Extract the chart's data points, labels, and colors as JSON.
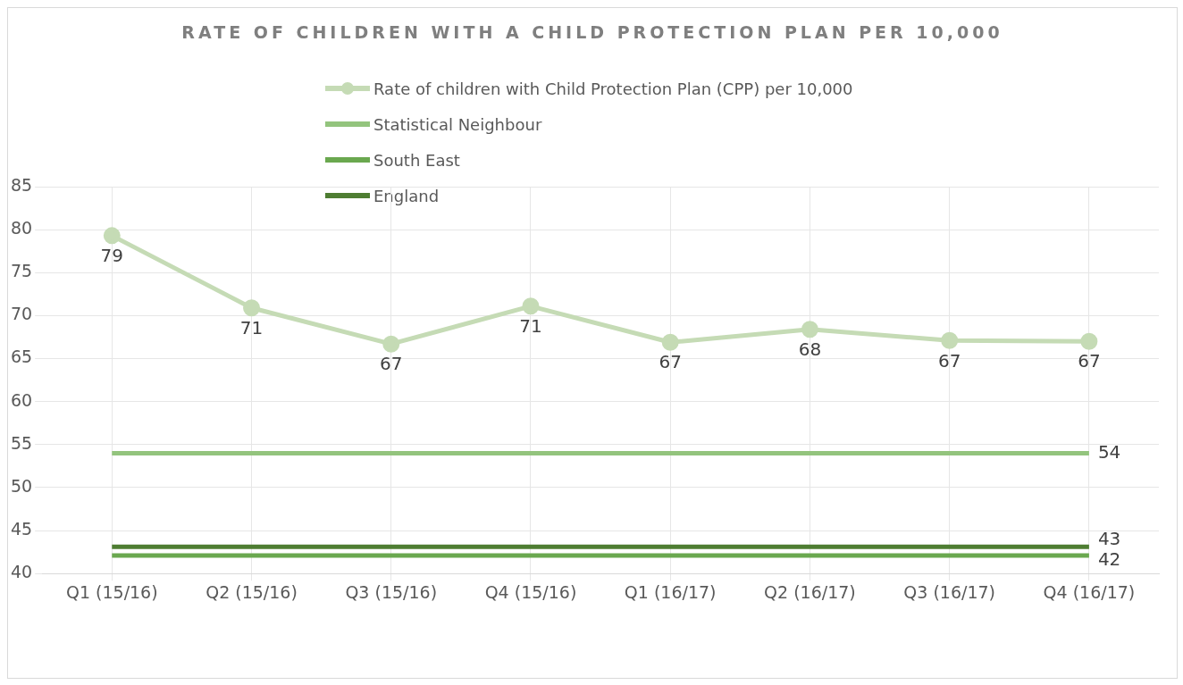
{
  "chart_data": {
    "type": "line",
    "title": "RATE OF CHILDREN WITH A CHILD PROTECTION PLAN PER 10,000",
    "categories": [
      "Q1 (15/16)",
      "Q2 (15/16)",
      "Q3 (15/16)",
      "Q4 (15/16)",
      "Q1 (16/17)",
      "Q2 (16/17)",
      "Q3 (16/17)",
      "Q4 (16/17)"
    ],
    "series": [
      {
        "name": "Rate of children with Child Protection Plan (CPP)  per 10,000",
        "color": "#c5dbb5",
        "marker": "circle",
        "values": [
          79.3,
          70.9,
          66.7,
          71.1,
          66.9,
          68.4,
          67.1,
          67.0
        ],
        "value_labels": [
          "79",
          "71",
          "67",
          "71",
          "67",
          "68",
          "67",
          "67"
        ]
      },
      {
        "name": "Statistical Neighbour",
        "color": "#93c47d",
        "marker": "none",
        "values": [
          54,
          54,
          54,
          54,
          54,
          54,
          54,
          54
        ],
        "value_labels": [
          null,
          null,
          null,
          null,
          null,
          null,
          null,
          "54"
        ]
      },
      {
        "name": "South East",
        "color": "#6aa84f",
        "marker": "none",
        "values": [
          42.1,
          42.1,
          42.1,
          42.1,
          42.1,
          42.1,
          42.1,
          42.1
        ],
        "value_labels": [
          null,
          null,
          null,
          null,
          null,
          null,
          null,
          "42"
        ]
      },
      {
        "name": "England",
        "color": "#4e7d32",
        "marker": "none",
        "values": [
          43.1,
          43.1,
          43.1,
          43.1,
          43.1,
          43.1,
          43.1,
          43.1
        ],
        "value_labels": [
          null,
          null,
          null,
          null,
          null,
          null,
          null,
          "43"
        ]
      }
    ],
    "ylim": [
      40,
      85
    ],
    "yticks": [
      40,
      45,
      50,
      55,
      60,
      65,
      70,
      75,
      80,
      85
    ],
    "grid": true,
    "legend": "top",
    "line_style": "solid"
  }
}
